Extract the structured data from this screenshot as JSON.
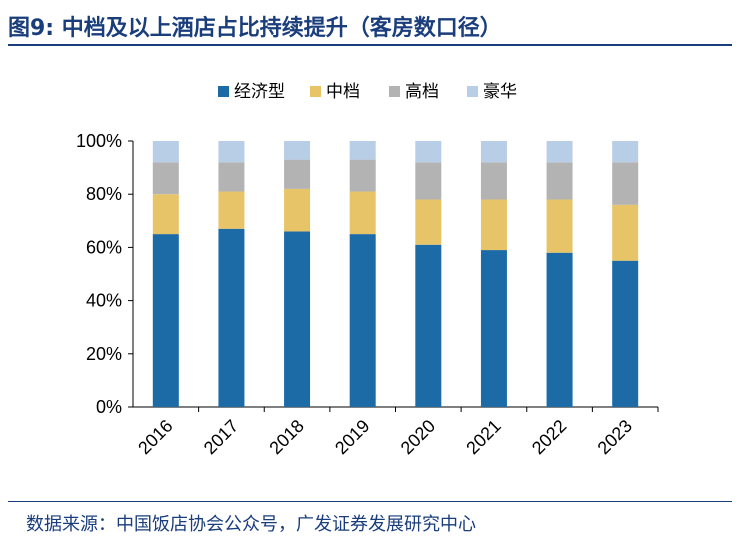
{
  "header": {
    "fig_label": "图9:",
    "title": "中档及以上酒店占比持续提升（客房数口径）"
  },
  "footer": {
    "source": "数据来源：中国饭店协会公众号，广发证券发展研究中心"
  },
  "chart_data": {
    "type": "bar",
    "stacked": true,
    "percent": true,
    "categories": [
      "2016",
      "2017",
      "2018",
      "2019",
      "2020",
      "2021",
      "2022",
      "2023"
    ],
    "series": [
      {
        "name": "经济型",
        "color": "#1c6ba7",
        "values": [
          65,
          67,
          66,
          65,
          61,
          59,
          58,
          55
        ]
      },
      {
        "name": "中档",
        "color": "#e8c468",
        "values": [
          15,
          14,
          16,
          16,
          17,
          19,
          20,
          21
        ]
      },
      {
        "name": "高档",
        "color": "#b3b3b3",
        "values": [
          12,
          11,
          11,
          12,
          14,
          14,
          14,
          16
        ]
      },
      {
        "name": "豪华",
        "color": "#b8cde6",
        "values": [
          8,
          8,
          7,
          7,
          8,
          8,
          8,
          8
        ]
      }
    ],
    "yticks": [
      "0%",
      "20%",
      "40%",
      "60%",
      "80%",
      "100%"
    ],
    "ylim": [
      0,
      100
    ],
    "legend_position": "top",
    "grid": false
  }
}
